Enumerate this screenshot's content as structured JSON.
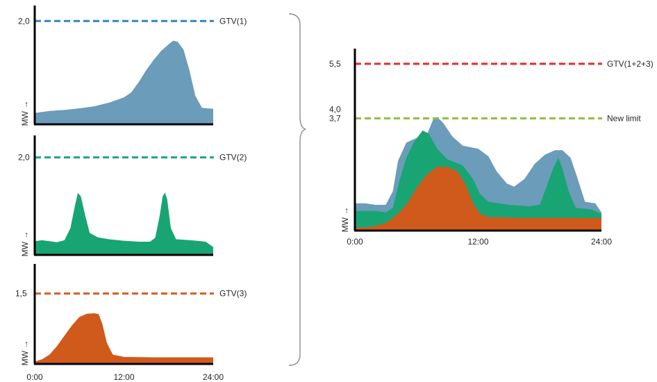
{
  "chart_data": [
    {
      "type": "area",
      "y_unit": "MW",
      "x_ticks": [],
      "y_ticks": [
        {
          "value": 2.0,
          "label": "2,0"
        }
      ],
      "ylim": [
        0,
        2.3
      ],
      "xlim": [
        0,
        24
      ],
      "limit": {
        "label": "GTV(1)",
        "value": 2.0,
        "color": "#2e86c1"
      },
      "series": [
        {
          "color": "#6b9cba",
          "points": [
            [
              0,
              0.22
            ],
            [
              2,
              0.26
            ],
            [
              4,
              0.28
            ],
            [
              6,
              0.31
            ],
            [
              8,
              0.35
            ],
            [
              10,
              0.42
            ],
            [
              12,
              0.52
            ],
            [
              13,
              0.62
            ],
            [
              14,
              0.82
            ],
            [
              15,
              1.05
            ],
            [
              16,
              1.25
            ],
            [
              17,
              1.42
            ],
            [
              18,
              1.55
            ],
            [
              18.6,
              1.62
            ],
            [
              19.2,
              1.6
            ],
            [
              20,
              1.45
            ],
            [
              20.8,
              1.05
            ],
            [
              21.6,
              0.55
            ],
            [
              22.5,
              0.32
            ],
            [
              24,
              0.3
            ]
          ]
        }
      ]
    },
    {
      "type": "area",
      "y_unit": "MW",
      "x_ticks": [],
      "y_ticks": [
        {
          "value": 2.0,
          "label": "2,0"
        }
      ],
      "ylim": [
        0,
        2.45
      ],
      "xlim": [
        0,
        24
      ],
      "limit": {
        "label": "GTV(2)",
        "value": 2.0,
        "color": "#1aa583"
      },
      "series": [
        {
          "color": "#19a474",
          "points": [
            [
              0,
              0.28
            ],
            [
              1,
              0.3
            ],
            [
              2,
              0.28
            ],
            [
              3,
              0.26
            ],
            [
              4,
              0.3
            ],
            [
              4.8,
              0.55
            ],
            [
              5.4,
              1.0
            ],
            [
              5.8,
              1.27
            ],
            [
              6.2,
              1.2
            ],
            [
              6.8,
              0.8
            ],
            [
              7.4,
              0.45
            ],
            [
              8.5,
              0.36
            ],
            [
              10,
              0.32
            ],
            [
              12,
              0.29
            ],
            [
              14,
              0.27
            ],
            [
              15.5,
              0.27
            ],
            [
              16.2,
              0.35
            ],
            [
              16.8,
              0.8
            ],
            [
              17.2,
              1.2
            ],
            [
              17.5,
              1.28
            ],
            [
              17.8,
              1.15
            ],
            [
              18.3,
              0.55
            ],
            [
              19,
              0.32
            ],
            [
              21,
              0.3
            ],
            [
              23,
              0.27
            ],
            [
              24,
              0.16
            ]
          ]
        }
      ]
    },
    {
      "type": "area",
      "y_unit": "MW",
      "x_ticks": [
        "0:00",
        "12:00",
        "24:00"
      ],
      "y_ticks": [
        {
          "value": 1.5,
          "label": "1,5"
        }
      ],
      "ylim": [
        0,
        2.13
      ],
      "xlim": [
        0,
        24
      ],
      "limit": {
        "label": "GTV(3)",
        "value": 1.5,
        "color": "#d35e1c"
      },
      "series": [
        {
          "color": "#d05a1b",
          "points": [
            [
              0,
              0.05
            ],
            [
              1,
              0.1
            ],
            [
              2,
              0.2
            ],
            [
              3,
              0.38
            ],
            [
              4,
              0.6
            ],
            [
              5,
              0.82
            ],
            [
              6,
              1.0
            ],
            [
              7,
              1.07
            ],
            [
              8,
              1.08
            ],
            [
              8.6,
              1.06
            ],
            [
              9.1,
              0.85
            ],
            [
              9.7,
              0.45
            ],
            [
              10.5,
              0.2
            ],
            [
              12,
              0.15
            ],
            [
              16,
              0.14
            ],
            [
              20,
              0.14
            ],
            [
              24,
              0.14
            ]
          ]
        }
      ]
    },
    {
      "type": "area",
      "y_unit": "MW",
      "x_ticks": [
        "0:00",
        "12:00",
        "24:00"
      ],
      "y_ticks": [
        {
          "value": 5.5,
          "label": "5,5"
        },
        {
          "value": 4.0,
          "label": "4,0"
        },
        {
          "value": 3.7,
          "label": "3,7"
        }
      ],
      "ylim": [
        0,
        6.0
      ],
      "xlim": [
        0,
        24
      ],
      "limits": [
        {
          "label": "GTV(1+2+3)",
          "value": 5.5,
          "color": "#e82a2a"
        },
        {
          "label": "New limit",
          "value": 3.7,
          "color": "#8fbe3c"
        }
      ],
      "series": [
        {
          "color": "#6b9cba",
          "points": [
            [
              0,
              0.9
            ],
            [
              1,
              0.9
            ],
            [
              2,
              0.85
            ],
            [
              3,
              0.85
            ],
            [
              3.7,
              1.3
            ],
            [
              4.2,
              2.3
            ],
            [
              5,
              2.9
            ],
            [
              6,
              3.05
            ],
            [
              7,
              3.15
            ],
            [
              7.6,
              3.65
            ],
            [
              8,
              3.75
            ],
            [
              8.6,
              3.55
            ],
            [
              9.5,
              3.1
            ],
            [
              10.5,
              2.8
            ],
            [
              12,
              2.7
            ],
            [
              13,
              2.45
            ],
            [
              13.8,
              1.95
            ],
            [
              14.8,
              1.55
            ],
            [
              15.5,
              1.45
            ],
            [
              16.5,
              1.7
            ],
            [
              17.5,
              2.2
            ],
            [
              18.5,
              2.5
            ],
            [
              19.5,
              2.65
            ],
            [
              20.2,
              2.65
            ],
            [
              21,
              2.4
            ],
            [
              21.6,
              1.8
            ],
            [
              22.4,
              0.95
            ],
            [
              23.4,
              0.9
            ],
            [
              24,
              0.6
            ]
          ]
        },
        {
          "color": "#19a474",
          "points": [
            [
              0,
              0.65
            ],
            [
              2,
              0.65
            ],
            [
              3,
              0.6
            ],
            [
              3.7,
              0.75
            ],
            [
              4.3,
              1.6
            ],
            [
              5,
              2.4
            ],
            [
              5.8,
              2.95
            ],
            [
              6.6,
              3.3
            ],
            [
              7.2,
              3.2
            ],
            [
              8,
              2.7
            ],
            [
              9,
              2.35
            ],
            [
              10.5,
              2.15
            ],
            [
              11.5,
              1.7
            ],
            [
              12.2,
              1.2
            ],
            [
              13,
              0.95
            ],
            [
              15,
              0.85
            ],
            [
              17,
              0.8
            ],
            [
              18,
              0.85
            ],
            [
              18.6,
              1.4
            ],
            [
              19.3,
              2.05
            ],
            [
              19.8,
              2.4
            ],
            [
              20.2,
              2.05
            ],
            [
              20.8,
              1.3
            ],
            [
              21.5,
              0.75
            ],
            [
              23,
              0.7
            ],
            [
              24,
              0.55
            ]
          ]
        },
        {
          "color": "#d05a1b",
          "points": [
            [
              0,
              0.1
            ],
            [
              1,
              0.1
            ],
            [
              2,
              0.15
            ],
            [
              3,
              0.25
            ],
            [
              4,
              0.5
            ],
            [
              5,
              0.85
            ],
            [
              6,
              1.4
            ],
            [
              7,
              1.85
            ],
            [
              8,
              2.1
            ],
            [
              9,
              2.1
            ],
            [
              10,
              1.95
            ],
            [
              10.8,
              1.5
            ],
            [
              11.5,
              0.9
            ],
            [
              12.2,
              0.55
            ],
            [
              13,
              0.45
            ],
            [
              16,
              0.42
            ],
            [
              20,
              0.42
            ],
            [
              24,
              0.42
            ]
          ]
        }
      ]
    }
  ]
}
